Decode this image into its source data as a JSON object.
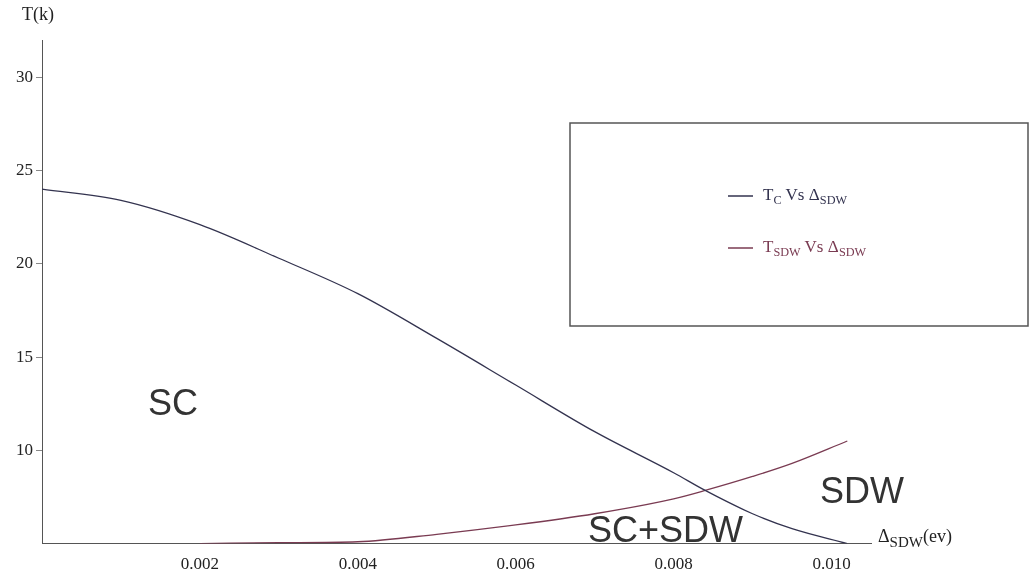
{
  "chart_data": {
    "type": "line",
    "xlabel": "Δ$_{SDW}$(ev)",
    "ylabel": "T(k)",
    "x": [
      0,
      0.001,
      0.002,
      0.003,
      0.004,
      0.005,
      0.006,
      0.007,
      0.008,
      0.0084,
      0.009,
      0.0095,
      0.0102
    ],
    "series": [
      {
        "name": "T$_{C}$ Vs Δ$_{SDW}$",
        "color": "#33334f",
        "values": [
          24,
          23.4,
          22.1,
          20.3,
          18.4,
          16,
          13.5,
          11,
          8.8,
          7.85,
          6.6,
          5.8,
          5
        ]
      },
      {
        "name": "T$_{SDW}$ Vs Δ$_{SDW}$",
        "color": "#7a3b52",
        "values": [
          null,
          null,
          5,
          5.05,
          5.1,
          5.5,
          6,
          6.6,
          7.4,
          7.85,
          8.6,
          9.3,
          10.5
        ]
      }
    ],
    "xlim": [
      0,
      0.0105
    ],
    "xticks": [
      0.002,
      0.004,
      0.006,
      0.008,
      {
        "value": 0.01,
        "label": "0.010"
      }
    ],
    "ylim": [
      5,
      32
    ],
    "yticks": [
      10,
      15,
      20,
      25,
      30
    ],
    "annotations": [
      "SC",
      "SC+SDW",
      "SDW"
    ],
    "legend": "right",
    "grid": false,
    "marker": "none",
    "line_style": "solid"
  }
}
